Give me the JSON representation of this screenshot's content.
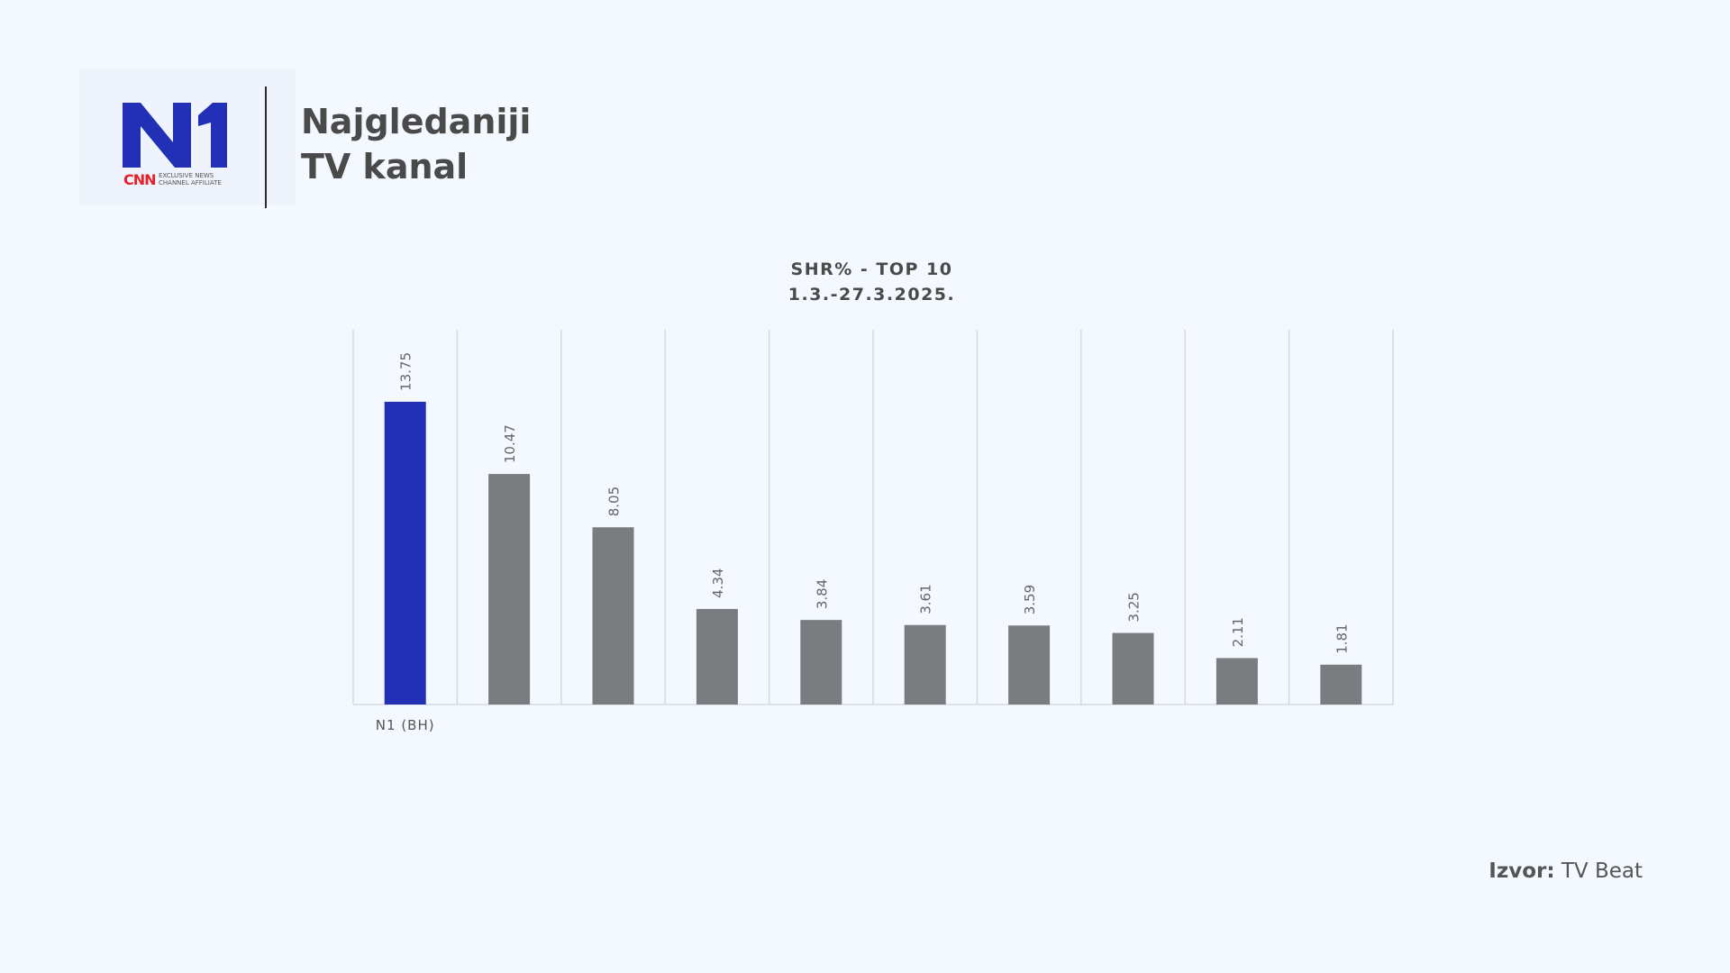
{
  "logo": {
    "brand": "N1",
    "affiliate_brand": "CNN",
    "affiliate_text": "EXCLUSIVE NEWS\nCHANNEL AFFILIATE"
  },
  "header": {
    "title_line1": "Najgledaniji",
    "title_line2": "TV kanal"
  },
  "chart_data": {
    "type": "bar",
    "title": "SHR% - TOP 10",
    "subtitle": "1.3.-27.3.2025.",
    "categories": [
      "N1 (BH)",
      "",
      "",
      "",
      "",
      "",
      "",
      "",
      "",
      ""
    ],
    "values": [
      13.75,
      10.47,
      8.05,
      4.34,
      3.84,
      3.61,
      3.59,
      3.25,
      2.11,
      1.81
    ],
    "value_labels": [
      "13.75",
      "10.47",
      "8.05",
      "4.34",
      "3.84",
      "3.61",
      "3.59",
      "3.25",
      "2.11",
      "1.81"
    ],
    "ylim": [
      0,
      16
    ],
    "grid": "vertical",
    "colors": {
      "highlight": "#2130b4",
      "default": "#7b7c80",
      "grid": "#d5d9e2",
      "label": "#666666"
    }
  },
  "source": {
    "label": "Izvor:",
    "value": "TV Beat"
  }
}
